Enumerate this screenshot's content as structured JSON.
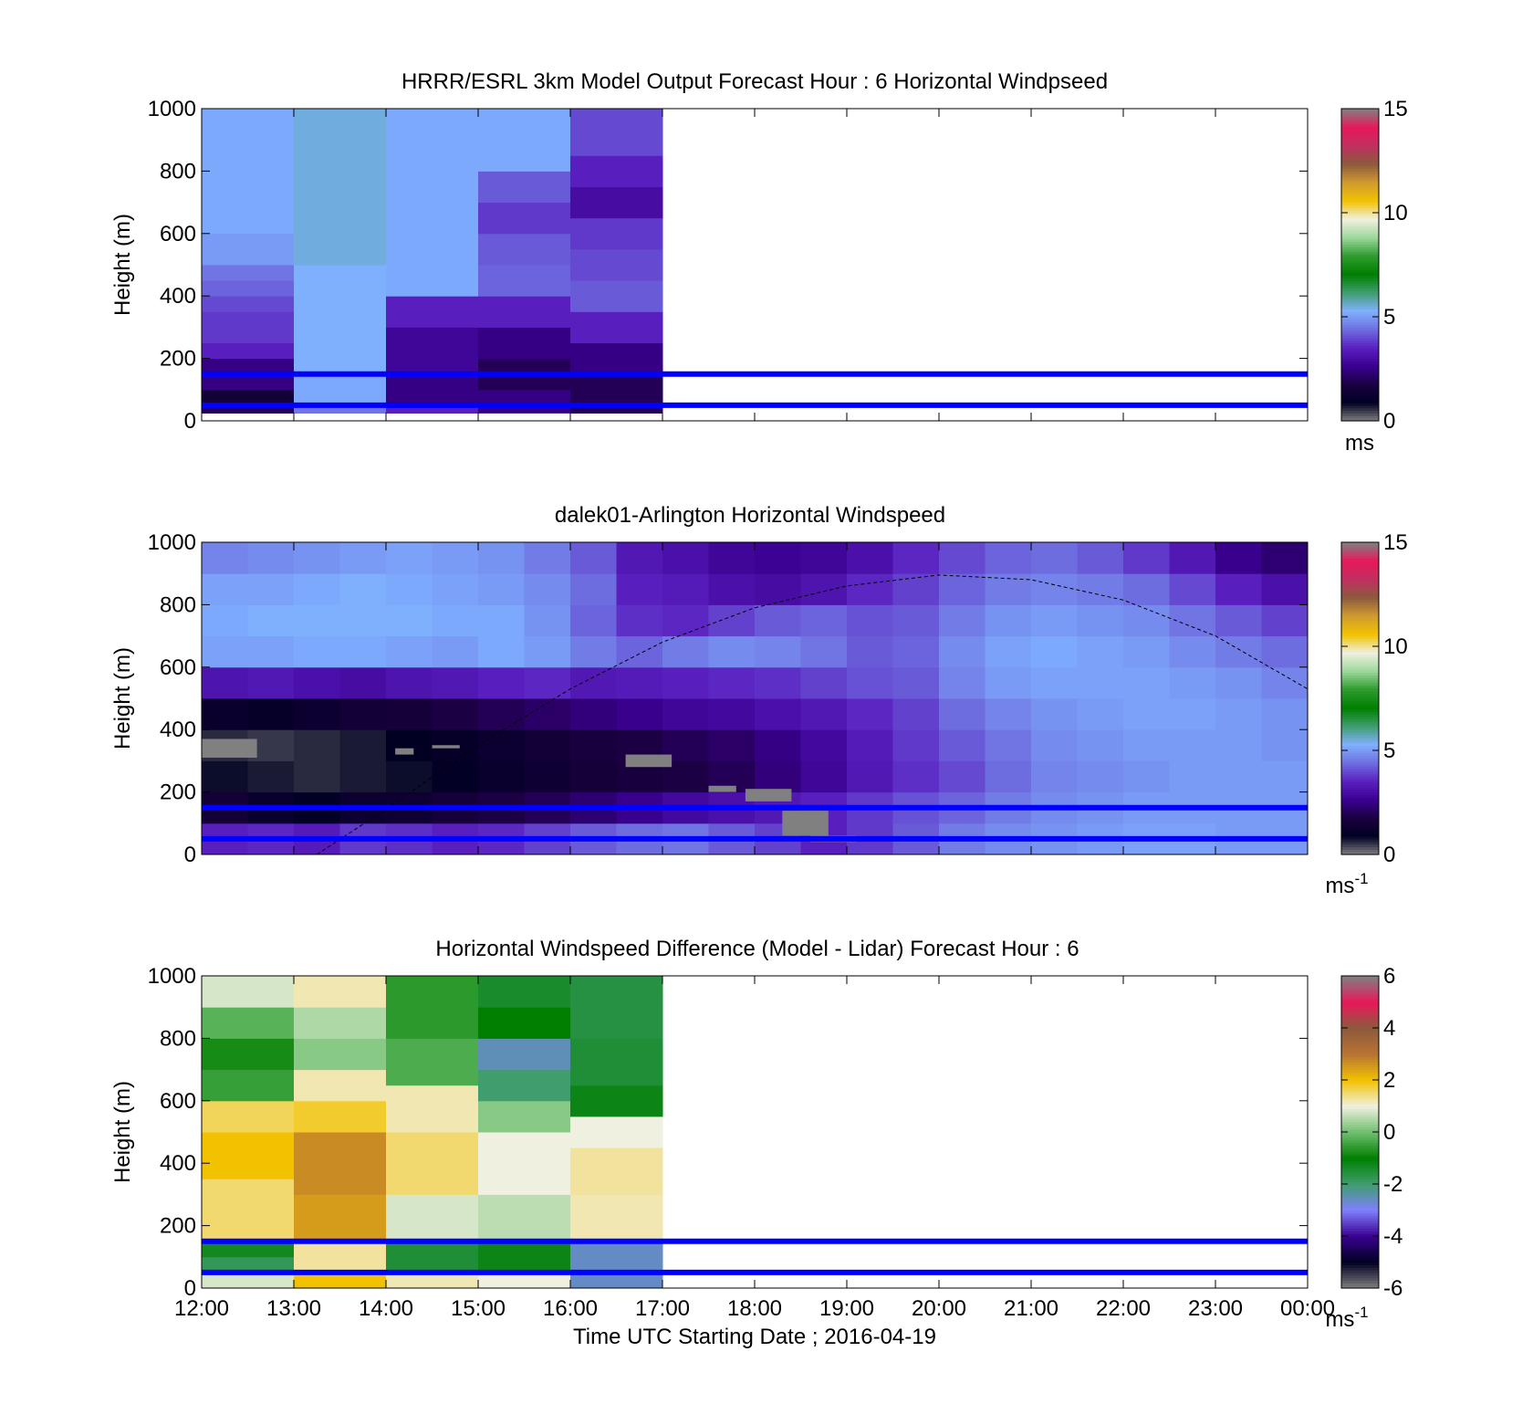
{
  "figure": {
    "xlabel": "Time UTC  Starting Date ; 2016-04-19",
    "x_ticks": [
      "12:00",
      "13:00",
      "14:00",
      "15:00",
      "16:00",
      "17:00",
      "18:00",
      "19:00",
      "20:00",
      "21:00",
      "22:00",
      "23:00",
      "00:00"
    ],
    "y_ticks": [
      "0",
      "200",
      "400",
      "600",
      "800",
      "1000"
    ],
    "reference_line_heights_m": [
      150,
      50
    ],
    "reference_line_color": "#0000ff",
    "speed_colormap": [
      "#808080",
      "#000022",
      "#1a0040",
      "#3a0090",
      "#5a20c0",
      "#6e6ee0",
      "#7fb0ff",
      "#3f9d6e",
      "#007f00",
      "#2e9c2e",
      "#9cd89c",
      "#f0f0e0",
      "#f2c200",
      "#d09a30",
      "#8c5a3c",
      "#c03060",
      "#e8185a",
      "#808080"
    ],
    "diff_colormap": [
      "#808080",
      "#000022",
      "#3a0090",
      "#7f7fff",
      "#3f9d6e",
      "#007f00",
      "#6ebf6e",
      "#f0f0e0",
      "#f2c200",
      "#b87333",
      "#8c5a3c",
      "#e8185a",
      "#808080"
    ]
  },
  "chart_data": [
    {
      "type": "heatmap",
      "title": "HRRR/ESRL 3km Model Output   Forecast Hour : 6 Horizontal Windpseed",
      "ylabel": "Height (m)",
      "colorbar_label": "ms",
      "colorbar_ticks": [
        "0",
        "5",
        "10",
        "15"
      ],
      "clim": [
        0,
        15
      ],
      "xlim": [
        "12:00",
        "00:00"
      ],
      "ylim": [
        0,
        1000
      ],
      "columns": [
        {
          "x_start": "12:00",
          "x_end": "13:00",
          "cells": [
            [
              25,
              50,
              2
            ],
            [
              50,
              100,
              1.5
            ],
            [
              100,
              150,
              2.5
            ],
            [
              150,
              200,
              2.5
            ],
            [
              200,
              250,
              3.5
            ],
            [
              250,
              300,
              3.8
            ],
            [
              300,
              350,
              3.8
            ],
            [
              350,
              400,
              4
            ],
            [
              400,
              450,
              4.3
            ],
            [
              450,
              500,
              4.5
            ],
            [
              500,
              600,
              5
            ],
            [
              600,
              1000,
              5.2
            ]
          ]
        },
        {
          "x_start": "13:00",
          "x_end": "14:00",
          "cells": [
            [
              25,
              50,
              4.5
            ],
            [
              50,
              150,
              5.2
            ],
            [
              150,
              300,
              5.3
            ],
            [
              300,
              500,
              5.3
            ],
            [
              500,
              1000,
              5.5
            ]
          ]
        },
        {
          "x_start": "14:00",
          "x_end": "15:00",
          "cells": [
            [
              25,
              50,
              3.5
            ],
            [
              50,
              150,
              2.5
            ],
            [
              150,
              300,
              2.8
            ],
            [
              300,
              400,
              3.5
            ],
            [
              400,
              1000,
              5.2
            ]
          ]
        },
        {
          "x_start": "15:00",
          "x_end": "16:00",
          "cells": [
            [
              25,
              100,
              2.5
            ],
            [
              100,
              200,
              2
            ],
            [
              200,
              300,
              2.5
            ],
            [
              300,
              400,
              3.5
            ],
            [
              400,
              500,
              4.3
            ],
            [
              500,
              600,
              4.2
            ],
            [
              600,
              700,
              3.8
            ],
            [
              700,
              800,
              4.2
            ],
            [
              800,
              1000,
              5.2
            ]
          ]
        },
        {
          "x_start": "16:00",
          "x_end": "17:00",
          "cells": [
            [
              25,
              150,
              2
            ],
            [
              150,
              250,
              2.5
            ],
            [
              250,
              350,
              3.5
            ],
            [
              350,
              450,
              4.2
            ],
            [
              450,
              550,
              4
            ],
            [
              550,
              650,
              3.8
            ],
            [
              650,
              750,
              3
            ],
            [
              750,
              850,
              3.5
            ],
            [
              850,
              1000,
              4
            ]
          ]
        }
      ]
    },
    {
      "type": "heatmap",
      "title": "dalek01-Arlington  Horizontal Windspeed",
      "ylabel": "Height (m)",
      "colorbar_label": "ms",
      "colorbar_label_sup": "-1",
      "colorbar_ticks": [
        "0",
        "5",
        "10",
        "15"
      ],
      "clim": [
        0,
        15
      ],
      "xlim": [
        "12:00",
        "00:00"
      ],
      "ylim": [
        0,
        1000
      ],
      "time_h": [
        12,
        12.5,
        13,
        13.5,
        14,
        14.5,
        15,
        15.5,
        16,
        16.5,
        17,
        17.5,
        18,
        18.5,
        19,
        19.5,
        20,
        20.5,
        21,
        21.5,
        22,
        22.5,
        23,
        23.5
      ],
      "height_m": [
        0,
        100,
        200,
        300,
        400,
        500,
        600,
        700,
        800,
        900,
        1000
      ],
      "speed": [
        [
          3.5,
          1.5,
          0.8,
          0.6,
          1.2,
          3.2,
          5.1,
          5.2,
          5.1,
          4.7
        ],
        [
          3.6,
          1.2,
          0.7,
          0.5,
          1.1,
          3.3,
          5.1,
          5.3,
          5.1,
          4.8
        ],
        [
          3.4,
          1.0,
          0.6,
          0.6,
          1.3,
          3.1,
          5.2,
          5.3,
          5.2,
          4.9
        ],
        [
          3.8,
          1.3,
          0.7,
          0.7,
          1.5,
          3.0,
          5.2,
          5.3,
          5.3,
          5.0
        ],
        [
          3.7,
          1.4,
          0.8,
          0.9,
          1.6,
          3.2,
          5.1,
          5.3,
          5.2,
          5.1
        ],
        [
          3.5,
          1.6,
          1.0,
          1.1,
          1.8,
          3.3,
          5.0,
          5.2,
          5.1,
          5.0
        ],
        [
          3.6,
          1.8,
          1.2,
          1.3,
          2.0,
          3.5,
          5.2,
          5.2,
          5.0,
          4.9
        ],
        [
          3.9,
          2.0,
          1.4,
          1.5,
          2.2,
          3.6,
          5.0,
          4.9,
          4.8,
          4.6
        ],
        [
          4.2,
          2.3,
          1.6,
          1.7,
          2.4,
          3.3,
          4.6,
          4.3,
          4.4,
          4.2
        ],
        [
          4.4,
          2.6,
          1.7,
          1.8,
          2.6,
          3.4,
          4.3,
          3.7,
          3.5,
          3.3
        ],
        [
          4.5,
          2.9,
          1.8,
          2.0,
          2.8,
          3.5,
          4.6,
          3.6,
          3.4,
          3.1
        ],
        [
          4.2,
          3.1,
          2.0,
          2.2,
          2.9,
          3.6,
          4.8,
          3.9,
          3.1,
          2.8
        ],
        [
          3.9,
          3.3,
          2.4,
          2.5,
          3.1,
          3.7,
          4.7,
          4.2,
          3.0,
          2.7
        ],
        [
          3.5,
          3.5,
          2.8,
          2.9,
          3.3,
          3.9,
          4.5,
          4.3,
          3.2,
          2.8
        ],
        [
          3.8,
          3.8,
          3.3,
          3.4,
          3.6,
          4.1,
          4.2,
          4.1,
          3.6,
          3.1
        ],
        [
          4.2,
          4.1,
          3.7,
          3.8,
          3.9,
          4.2,
          4.3,
          4.2,
          3.9,
          3.6
        ],
        [
          4.6,
          4.3,
          4.0,
          4.2,
          4.4,
          4.7,
          4.8,
          4.6,
          4.3,
          4.0
        ],
        [
          4.8,
          4.6,
          4.4,
          4.5,
          4.7,
          5.0,
          5.1,
          4.9,
          4.6,
          4.3
        ],
        [
          4.9,
          4.8,
          4.7,
          4.8,
          4.9,
          5.1,
          5.2,
          5.0,
          4.7,
          4.4
        ],
        [
          5.0,
          4.9,
          4.8,
          4.9,
          5.0,
          5.1,
          5.1,
          4.9,
          4.6,
          4.2
        ],
        [
          5.1,
          5.0,
          4.9,
          5.0,
          5.1,
          5.1,
          5.0,
          4.8,
          4.4,
          3.8
        ],
        [
          5.1,
          5.0,
          5.0,
          5.0,
          5.1,
          5.0,
          4.8,
          4.5,
          4.0,
          3.3
        ],
        [
          5.0,
          5.0,
          5.0,
          5.0,
          5.0,
          4.9,
          4.6,
          4.2,
          3.5,
          2.6
        ],
        [
          5.0,
          5.0,
          5.0,
          4.9,
          4.9,
          4.7,
          4.4,
          3.9,
          3.1,
          2.3
        ]
      ],
      "missing_data": [
        {
          "x_start": 12.0,
          "x_end": 12.6,
          "y_start": 310,
          "y_end": 370
        },
        {
          "x_start": 14.1,
          "x_end": 14.3,
          "y_start": 320,
          "y_end": 340
        },
        {
          "x_start": 14.5,
          "x_end": 14.8,
          "y_start": 340,
          "y_end": 350
        },
        {
          "x_start": 16.6,
          "x_end": 17.1,
          "y_start": 280,
          "y_end": 320
        },
        {
          "x_start": 17.5,
          "x_end": 17.8,
          "y_start": 200,
          "y_end": 220
        },
        {
          "x_start": 17.9,
          "x_end": 18.4,
          "y_start": 170,
          "y_end": 210
        },
        {
          "x_start": 18.3,
          "x_end": 18.8,
          "y_start": 60,
          "y_end": 140
        },
        {
          "x_start": 18.6,
          "x_end": 19.1,
          "y_start": 40,
          "y_end": 60
        }
      ],
      "dashed_curve": {
        "color": "#000000",
        "x": [
          13.25,
          14,
          15,
          16,
          17,
          18,
          19,
          20,
          21,
          22,
          23,
          24
        ],
        "y": [
          0,
          145,
          350,
          530,
          680,
          790,
          860,
          895,
          880,
          815,
          700,
          530
        ]
      }
    },
    {
      "type": "heatmap",
      "title": "Horizontal Windspeed Difference (Model - Lidar) Forecast Hour : 6",
      "ylabel": "Height (m)",
      "colorbar_label": "ms",
      "colorbar_label_sup": "-1",
      "colorbar_ticks": [
        "-6",
        "-4",
        "-2",
        "0",
        "2",
        "4",
        "6"
      ],
      "clim": [
        -6,
        6
      ],
      "xlim": [
        "12:00",
        "00:00"
      ],
      "ylim": [
        0,
        1000
      ],
      "columns": [
        {
          "x_start": "12:00",
          "x_end": "13:00",
          "cells": [
            [
              0,
              50,
              0.8
            ],
            [
              50,
              100,
              -1.8
            ],
            [
              100,
              150,
              -1.3
            ],
            [
              150,
              250,
              1.5
            ],
            [
              250,
              350,
              1.5
            ],
            [
              350,
              500,
              2
            ],
            [
              500,
              600,
              1.6
            ],
            [
              600,
              700,
              -0.5
            ],
            [
              700,
              800,
              -0.8
            ],
            [
              800,
              900,
              -0.2
            ],
            [
              900,
              1000,
              0.8
            ]
          ]
        },
        {
          "x_start": "13:00",
          "x_end": "14:00",
          "cells": [
            [
              0,
              50,
              2
            ],
            [
              50,
              150,
              1.3
            ],
            [
              150,
              300,
              2.5
            ],
            [
              300,
              500,
              2.7
            ],
            [
              500,
              600,
              1.8
            ],
            [
              600,
              700,
              1.2
            ],
            [
              700,
              800,
              0.2
            ],
            [
              800,
              900,
              0.5
            ],
            [
              900,
              1000,
              1.2
            ]
          ]
        },
        {
          "x_start": "14:00",
          "x_end": "15:00",
          "cells": [
            [
              0,
              50,
              1.2
            ],
            [
              50,
              150,
              -1.5
            ],
            [
              150,
              300,
              0.8
            ],
            [
              300,
              500,
              1.5
            ],
            [
              500,
              650,
              1.2
            ],
            [
              650,
              800,
              -0.3
            ],
            [
              800,
              1000,
              -0.6
            ]
          ]
        },
        {
          "x_start": "15:00",
          "x_end": "16:00",
          "cells": [
            [
              0,
              50,
              1
            ],
            [
              50,
              150,
              -1.2
            ],
            [
              150,
              300,
              0.6
            ],
            [
              300,
              500,
              1
            ],
            [
              500,
              600,
              0.2
            ],
            [
              600,
              700,
              -2
            ],
            [
              700,
              800,
              -2.5
            ],
            [
              800,
              900,
              -1
            ],
            [
              900,
              1000,
              -1.4
            ]
          ]
        },
        {
          "x_start": "16:00",
          "x_end": "17:00",
          "cells": [
            [
              0,
              150,
              -2.6
            ],
            [
              150,
              300,
              1.2
            ],
            [
              300,
              450,
              1.3
            ],
            [
              450,
              550,
              1
            ],
            [
              550,
              650,
              -1.2
            ],
            [
              650,
              800,
              -1.5
            ],
            [
              800,
              1000,
              -1.6
            ]
          ]
        }
      ]
    }
  ]
}
